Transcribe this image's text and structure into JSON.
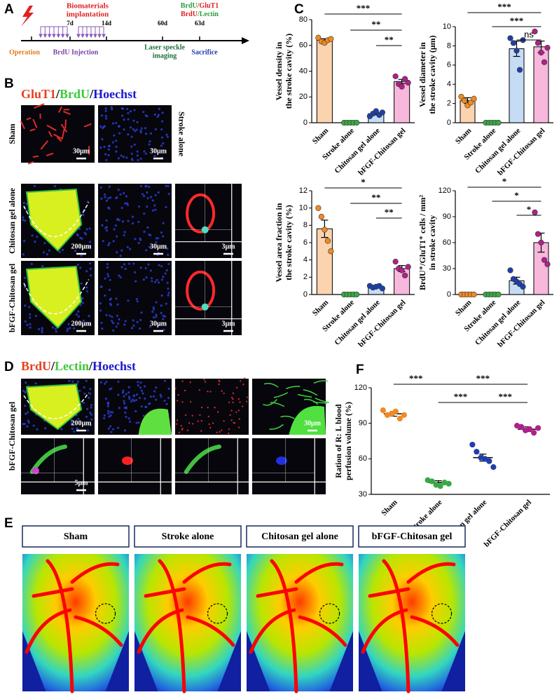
{
  "panel_labels": [
    "A",
    "B",
    "C",
    "D",
    "E",
    "F"
  ],
  "timeline": {
    "implantation": [
      "Biomaterials",
      "implantation"
    ],
    "days": [
      "7d",
      "14d",
      "60d",
      "63d"
    ],
    "operation": "Operation",
    "injection": "BrdU Injection",
    "imaging": [
      "Laser speckle",
      "imaging"
    ],
    "sacrifice": "Sacrifice",
    "stain_1": [
      "BrdU",
      "/GluT1"
    ],
    "stain_2": [
      "BrdU",
      "/Lectin"
    ]
  },
  "panel_b": {
    "title": [
      {
        "text": "GluT1",
        "color": "#e8401f"
      },
      {
        "text": "/",
        "color": "#000000"
      },
      {
        "text": "BrdU",
        "color": "#3ec83e"
      },
      {
        "text": "/",
        "color": "#000000"
      },
      {
        "text": "Hoechst",
        "color": "#1a1ad0"
      }
    ],
    "row_labels": [
      "Sham",
      "Chitosan gel alone",
      "bFGF-Chitosan gel"
    ],
    "col_label": "Stroke alone",
    "scale_bars": [
      "30μm",
      "30μm",
      "200μm",
      "30μm",
      "3μm",
      "200μm",
      "30μm",
      "3μm"
    ]
  },
  "panel_d": {
    "title": [
      {
        "text": "BrdU",
        "color": "#e8401f"
      },
      {
        "text": "/",
        "color": "#000000"
      },
      {
        "text": "Lectin",
        "color": "#3ec83e"
      },
      {
        "text": "/",
        "color": "#000000"
      },
      {
        "text": "Hoechst",
        "color": "#1a1ad0"
      }
    ],
    "row_label": "bFGF-Chitosan gel",
    "scale_bars": [
      "200μm",
      "30μm",
      "5μm"
    ]
  },
  "panel_e": {
    "labels": [
      "Sham",
      "Stroke alone",
      "Chitosan gel alone",
      "bFGF-Chitosan gel"
    ]
  },
  "chart_data": [
    {
      "type": "bar",
      "ylabel": [
        "Vessel  density in",
        "the stroke cavity (%)"
      ],
      "categories": [
        "Sham",
        "Stroke alone",
        "Chitosan gel alone",
        "bFGF-Chitosan gel"
      ],
      "values": [
        64,
        0,
        7,
        32
      ],
      "errors": [
        1.2,
        0,
        0.9,
        1.6
      ],
      "points": [
        [
          66,
          63,
          62,
          64,
          65
        ],
        [
          0,
          0,
          0,
          0,
          0
        ],
        [
          5,
          7,
          9,
          6,
          8
        ],
        [
          36,
          30,
          28,
          34,
          31
        ]
      ],
      "bar_colors": [
        "#fbd3ae",
        "#c8e6c9",
        "#c6dcf5",
        "#f7b8dc"
      ],
      "point_colors": [
        "#f08a24",
        "#3aa845",
        "#1f3fa8",
        "#b0208a"
      ],
      "ylim": [
        0,
        80
      ],
      "yticks": [
        0,
        20,
        40,
        60,
        80
      ],
      "comparisons": [
        {
          "groups": [
            0,
            3
          ],
          "label": "***"
        },
        {
          "groups": [
            1,
            3
          ],
          "label": "**"
        },
        {
          "groups": [
            2,
            3
          ],
          "label": "**"
        }
      ]
    },
    {
      "type": "bar",
      "ylabel": [
        "Vessel  diameter in",
        "the stroke cavity (μm)"
      ],
      "categories": [
        "Sham",
        "Stroke alone",
        "Chitosan gel alone",
        "bFGF-Chitosan gel"
      ],
      "values": [
        2.3,
        0,
        7.7,
        7.9
      ],
      "errors": [
        0.3,
        0,
        0.8,
        0.6
      ],
      "points": [
        [
          2.7,
          2.3,
          1.8,
          2.1,
          2.5
        ],
        [
          0,
          0,
          0,
          0,
          0
        ],
        [
          8.8,
          8.3,
          7.5,
          5.5,
          8.6
        ],
        [
          9.5,
          8.3,
          7.3,
          6.3,
          7.8
        ]
      ],
      "bar_colors": [
        "#fbd3ae",
        "#c8e6c9",
        "#c6dcf5",
        "#f7b8dc"
      ],
      "point_colors": [
        "#f08a24",
        "#3aa845",
        "#1f3fa8",
        "#b0208a"
      ],
      "ylim": [
        0,
        10
      ],
      "yticks": [
        0,
        2,
        4,
        6,
        8,
        10
      ],
      "comparisons": [
        {
          "groups": [
            0,
            3
          ],
          "label": "***"
        },
        {
          "groups": [
            1,
            3
          ],
          "label": "***"
        },
        {
          "groups": [
            2,
            3
          ],
          "label": "ns"
        }
      ]
    },
    {
      "type": "bar",
      "ylabel": [
        "Vessel  area fraction in",
        "the stroke cavity (%)"
      ],
      "categories": [
        "Sham",
        "Stroke alone",
        "Chitosan gel alone",
        "bFGF-Chitosan gel"
      ],
      "values": [
        7.6,
        0,
        0.9,
        3.0
      ],
      "errors": [
        1.0,
        0,
        0.1,
        0.35
      ],
      "points": [
        [
          10.0,
          9.0,
          7.5,
          6.2,
          5.0
        ],
        [
          0,
          0,
          0,
          0,
          0
        ],
        [
          1.0,
          0.8,
          0.9,
          1.0,
          0.7
        ],
        [
          3.8,
          3.0,
          2.8,
          2.2,
          3.2
        ]
      ],
      "bar_colors": [
        "#fbd3ae",
        "#c8e6c9",
        "#c6dcf5",
        "#f7b8dc"
      ],
      "point_colors": [
        "#f08a24",
        "#3aa845",
        "#1f3fa8",
        "#b0208a"
      ],
      "ylim": [
        0,
        12
      ],
      "yticks": [
        0,
        2,
        4,
        6,
        8,
        10,
        12
      ],
      "comparisons": [
        {
          "groups": [
            0,
            3
          ],
          "label": "*"
        },
        {
          "groups": [
            1,
            3
          ],
          "label": "**"
        },
        {
          "groups": [
            2,
            3
          ],
          "label": "**"
        }
      ]
    },
    {
      "type": "bar",
      "ylabel": [
        "BrdU⁺/GluT1⁺ cells / mm²",
        "in stroke cavity"
      ],
      "categories": [
        "Sham",
        "Stroke alone",
        "Chitosan gel alone",
        "bFGF-Chitosan gel"
      ],
      "values": [
        0,
        0,
        16,
        60
      ],
      "errors": [
        0,
        0,
        4,
        11
      ],
      "points": [
        [
          0,
          0,
          0,
          0,
          0
        ],
        [
          0,
          0,
          0,
          0,
          0
        ],
        [
          28,
          18,
          15,
          12,
          9
        ],
        [
          95,
          70,
          60,
          40,
          35
        ]
      ],
      "bar_colors": [
        "#fbd3ae",
        "#c8e6c9",
        "#c6dcf5",
        "#f7b8dc"
      ],
      "point_colors": [
        "#f08a24",
        "#3aa845",
        "#1f3fa8",
        "#b0208a"
      ],
      "ylim": [
        0,
        120
      ],
      "yticks": [
        0,
        30,
        60,
        90,
        120
      ],
      "comparisons": [
        {
          "groups": [
            0,
            3
          ],
          "label": "*"
        },
        {
          "groups": [
            1,
            3
          ],
          "label": "*"
        },
        {
          "groups": [
            2,
            3
          ],
          "label": "*"
        }
      ]
    },
    {
      "type": "dot",
      "ylabel": [
        "Ration of R: L blood",
        "perfusion volume (%)"
      ],
      "categories": [
        "Sham",
        "Stroke alone",
        "Chitosan gel alone",
        "bFGF-Chitosan gel"
      ],
      "values": [
        98,
        40,
        61,
        85
      ],
      "errors": [
        2,
        1.5,
        3,
        2
      ],
      "points": [
        [
          101,
          97,
          98,
          100,
          94,
          97
        ],
        [
          42,
          41,
          38,
          37,
          40,
          39
        ],
        [
          72,
          66,
          61,
          60,
          58,
          53
        ],
        [
          88,
          87,
          84,
          85,
          82,
          86
        ]
      ],
      "point_colors": [
        "#f08a24",
        "#3aa845",
        "#1f3fa8",
        "#b0208a"
      ],
      "ylim": [
        30,
        120
      ],
      "yticks": [
        30,
        60,
        90,
        120
      ],
      "comparisons": [
        {
          "groups": [
            0,
            1
          ],
          "label": "***"
        },
        {
          "groups": [
            1,
            3
          ],
          "label": "***"
        },
        {
          "groups": [
            1,
            2
          ],
          "label": "***"
        },
        {
          "groups": [
            2,
            3
          ],
          "label": "***"
        }
      ]
    }
  ]
}
